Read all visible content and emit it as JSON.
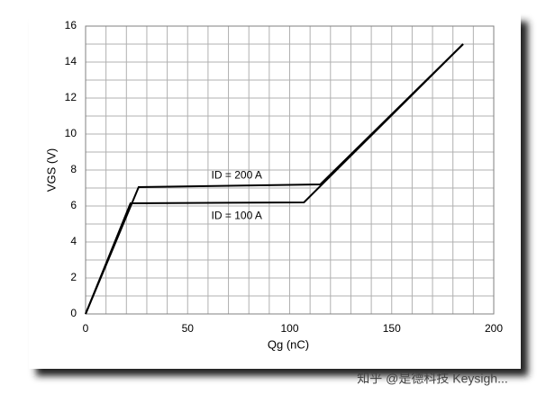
{
  "chart_data": {
    "type": "line",
    "xlabel": "Qg (nC)",
    "ylabel": "VGS (V)",
    "xlim": [
      0,
      200
    ],
    "xticks": [
      0,
      50,
      100,
      150,
      200
    ],
    "ylim": [
      0,
      16
    ],
    "yticks": [
      0,
      2,
      4,
      6,
      8,
      10,
      12,
      14,
      16
    ],
    "grid": true,
    "series": [
      {
        "name": "ID = 200 A",
        "color": "#000000",
        "x": [
          0,
          26,
          115,
          185
        ],
        "values": [
          0,
          7.05,
          7.2,
          15
        ]
      },
      {
        "name": "ID = 100 A",
        "color": "#000000",
        "x": [
          0,
          22,
          107,
          185
        ],
        "values": [
          0,
          6.15,
          6.2,
          15
        ]
      }
    ],
    "watermark": "知乎 @是德科技 Keysigh..."
  }
}
